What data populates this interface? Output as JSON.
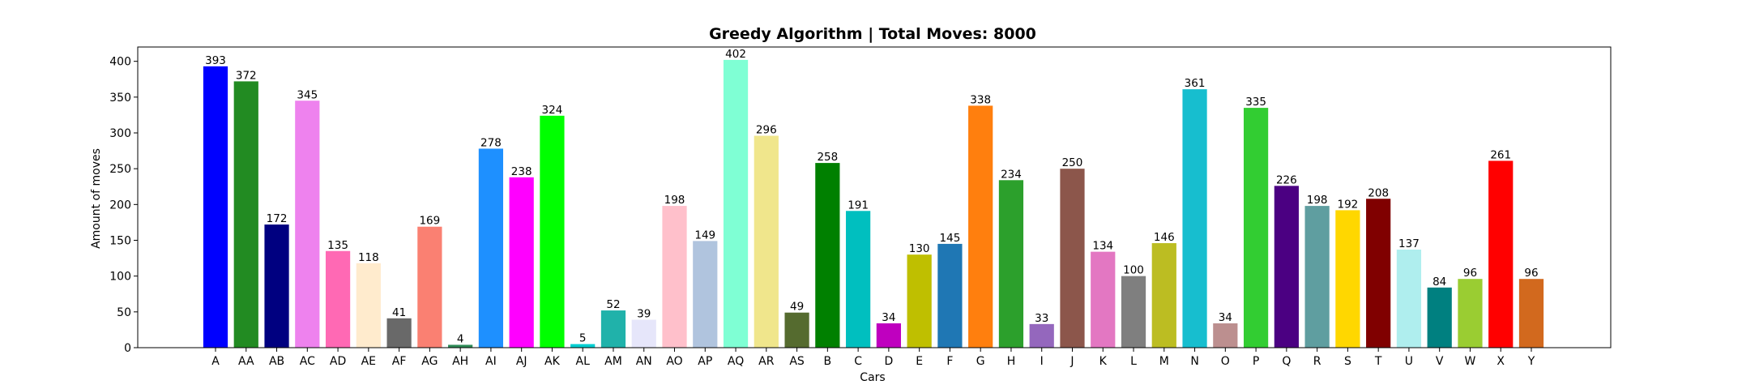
{
  "chart_data": {
    "type": "bar",
    "title": "Greedy Algorithm | Total Moves: 8000",
    "xlabel": "Cars",
    "ylabel": "Amount of moves",
    "ylim": [
      0,
      420
    ],
    "yticks": [
      0,
      50,
      100,
      150,
      200,
      250,
      300,
      350,
      400
    ],
    "grid": false,
    "categories": [
      "A",
      "AA",
      "AB",
      "AC",
      "AD",
      "AE",
      "AF",
      "AG",
      "AH",
      "AI",
      "AJ",
      "AK",
      "AL",
      "AM",
      "AN",
      "AO",
      "AP",
      "AQ",
      "AR",
      "AS",
      "B",
      "C",
      "D",
      "E",
      "F",
      "G",
      "H",
      "I",
      "J",
      "K",
      "L",
      "M",
      "N",
      "O",
      "P",
      "Q",
      "R",
      "S",
      "T",
      "U",
      "V",
      "W",
      "X",
      "Y"
    ],
    "values": [
      393,
      372,
      172,
      345,
      135,
      118,
      41,
      169,
      4,
      278,
      238,
      324,
      5,
      52,
      39,
      198,
      149,
      402,
      296,
      49,
      258,
      191,
      34,
      130,
      145,
      338,
      234,
      33,
      250,
      134,
      100,
      146,
      361,
      34,
      335,
      226,
      198,
      192,
      208,
      137,
      84,
      96,
      261,
      96
    ],
    "colors": [
      "#0000ff",
      "#228b22",
      "#000080",
      "#ee82ee",
      "#ff69b4",
      "#ffebcd",
      "#696969",
      "#fa8072",
      "#2e8b57",
      "#1e90ff",
      "#ff00ff",
      "#00ff00",
      "#00ced1",
      "#20b2aa",
      "#e6e6fa",
      "#ffc0cb",
      "#b0c4de",
      "#7fffd4",
      "#f0e68c",
      "#556b2f",
      "#008000",
      "#00bfbf",
      "#bf00bf",
      "#bfbf00",
      "#1f77b4",
      "#ff7f0e",
      "#2ca02c",
      "#9467bd",
      "#8c564b",
      "#e377c2",
      "#7f7f7f",
      "#bcbd22",
      "#17becf",
      "#bc8f8f",
      "#32cd32",
      "#4b0082",
      "#5f9ea0",
      "#ffd700",
      "#800000",
      "#afeeee",
      "#008080",
      "#9acd32",
      "#ff0000",
      "#d2691e"
    ]
  }
}
